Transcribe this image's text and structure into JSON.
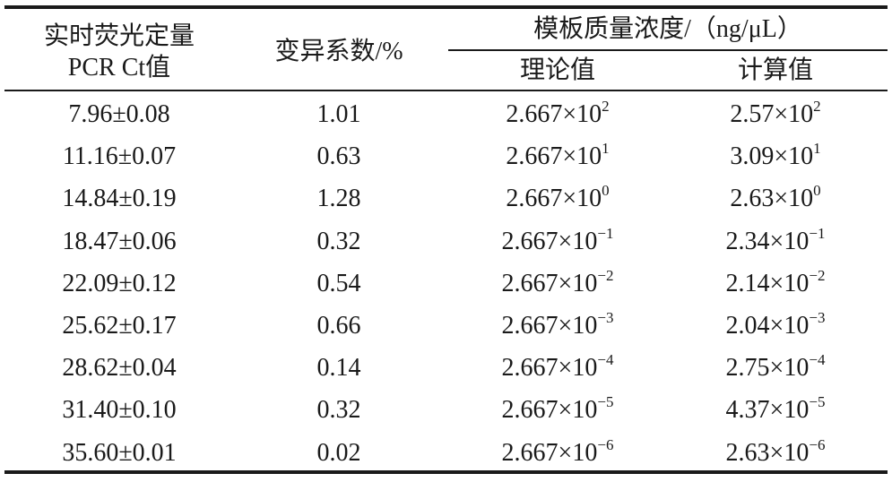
{
  "table": {
    "header": {
      "ct": [
        "实时荧光定量",
        "PCR Ct值"
      ],
      "cv": "变异系数/%",
      "group": "模板质量浓度/（ng/μL）",
      "theory": "理论值",
      "calc": "计算值"
    },
    "rows": [
      [
        "7.96±0.08",
        "1.01",
        {
          "base": "2.667×10",
          "exp": "2"
        },
        {
          "base": "2.57×10",
          "exp": "2"
        }
      ],
      [
        "11.16±0.07",
        "0.63",
        {
          "base": "2.667×10",
          "exp": "1"
        },
        {
          "base": "3.09×10",
          "exp": "1"
        }
      ],
      [
        "14.84±0.19",
        "1.28",
        {
          "base": "2.667×10",
          "exp": "0"
        },
        {
          "base": "2.63×10",
          "exp": "0"
        }
      ],
      [
        "18.47±0.06",
        "0.32",
        {
          "base": "2.667×10",
          "exp": "−1"
        },
        {
          "base": "2.34×10",
          "exp": "−1"
        }
      ],
      [
        "22.09±0.12",
        "0.54",
        {
          "base": "2.667×10",
          "exp": "−2"
        },
        {
          "base": "2.14×10",
          "exp": "−2"
        }
      ],
      [
        "25.62±0.17",
        "0.66",
        {
          "base": "2.667×10",
          "exp": "−3"
        },
        {
          "base": "2.04×10",
          "exp": "−3"
        }
      ],
      [
        "28.62±0.04",
        "0.14",
        {
          "base": "2.667×10",
          "exp": "−4"
        },
        {
          "base": "2.75×10",
          "exp": "−4"
        }
      ],
      [
        "31.40±0.10",
        "0.32",
        {
          "base": "2.667×10",
          "exp": "−5"
        },
        {
          "base": "4.37×10",
          "exp": "−5"
        }
      ],
      [
        "35.60±0.01",
        "0.02",
        {
          "base": "2.667×10",
          "exp": "−6"
        },
        {
          "base": "2.63×10",
          "exp": "−6"
        }
      ]
    ]
  }
}
